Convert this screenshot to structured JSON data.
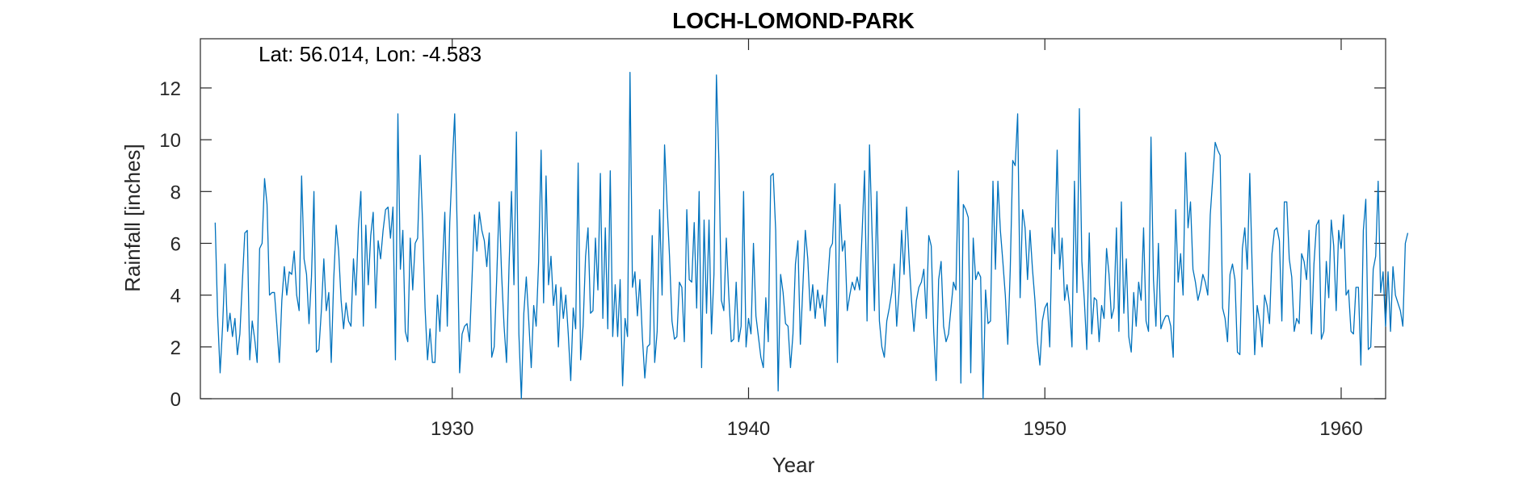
{
  "chart_data": {
    "type": "line",
    "title": "LOCH-LOMOND-PARK",
    "annotation": "Lat: 56.014, Lon: -4.583",
    "xlabel": "Year",
    "ylabel": "Rainfall [inches]",
    "xlim": [
      1921.5,
      1961.5
    ],
    "ylim": [
      0,
      13.9
    ],
    "xticks": [
      1930,
      1940,
      1950,
      1960
    ],
    "yticks": [
      0,
      2,
      4,
      6,
      8,
      10,
      12
    ],
    "grid": false,
    "series": [
      {
        "color": "#0072BD",
        "x_start": 1922.0,
        "x_step": 0.08333,
        "values": [
          6.8,
          3.2,
          1.0,
          2.8,
          5.2,
          2.6,
          3.3,
          2.4,
          3.1,
          1.7,
          2.5,
          4.5,
          6.4,
          6.5,
          1.5,
          3.0,
          2.3,
          1.4,
          5.8,
          6.0,
          8.5,
          7.5,
          4.0,
          4.1,
          4.1,
          2.8,
          1.4,
          3.8,
          5.1,
          4.0,
          4.9,
          4.8,
          5.7,
          4.0,
          3.4,
          8.6,
          5.4,
          4.8,
          2.9,
          4.7,
          8.0,
          1.8,
          1.9,
          3.4,
          5.4,
          3.4,
          4.1,
          1.4,
          4.6,
          6.7,
          5.7,
          3.8,
          2.7,
          3.7,
          3.0,
          2.8,
          5.4,
          4.0,
          6.6,
          8.0,
          2.8,
          6.7,
          4.4,
          6.3,
          7.2,
          3.5,
          6.1,
          5.4,
          6.5,
          7.3,
          7.4,
          6.2,
          7.4,
          1.5,
          11.0,
          5.0,
          6.5,
          2.6,
          2.2,
          6.2,
          4.2,
          6.0,
          6.2,
          9.4,
          6.8,
          3.5,
          1.5,
          2.7,
          1.4,
          1.4,
          4.0,
          2.6,
          5.0,
          7.2,
          2.8,
          6.8,
          9.0,
          11.0,
          6.6,
          1.0,
          2.5,
          2.8,
          2.9,
          2.2,
          4.6,
          7.1,
          5.7,
          7.2,
          6.5,
          6.1,
          5.1,
          6.4,
          1.6,
          2.0,
          4.6,
          7.6,
          4.8,
          2.8,
          1.4,
          5.1,
          8.0,
          4.4,
          10.3,
          2.5,
          0.0,
          3.3,
          4.7,
          3.0,
          1.2,
          3.6,
          2.8,
          5.3,
          9.6,
          3.7,
          8.6,
          4.4,
          5.5,
          3.6,
          4.4,
          2.0,
          4.3,
          3.1,
          4.0,
          2.5,
          0.7,
          3.5,
          2.7,
          9.1,
          1.5,
          2.8,
          5.5,
          6.6,
          3.3,
          3.4,
          6.2,
          4.2,
          8.7,
          3.1,
          6.6,
          2.7,
          8.8,
          2.4,
          4.4,
          2.4,
          4.6,
          0.5,
          3.1,
          2.4,
          12.6,
          4.3,
          4.9,
          3.2,
          4.6,
          2.4,
          0.8,
          2.0,
          2.1,
          6.3,
          1.4,
          2.6,
          7.3,
          4.0,
          9.8,
          7.5,
          5.5,
          3.0,
          2.3,
          2.4,
          4.5,
          4.3,
          2.2,
          7.3,
          4.6,
          4.5,
          6.8,
          3.5,
          8.0,
          1.2,
          6.9,
          3.3,
          6.9,
          2.5,
          4.8,
          12.5,
          9.2,
          3.8,
          3.4,
          6.2,
          4.0,
          2.2,
          2.3,
          4.5,
          2.2,
          2.8,
          8.0,
          2.0,
          3.1,
          2.5,
          6.0,
          3.2,
          2.4,
          1.6,
          1.2,
          3.9,
          2.2,
          8.6,
          8.7,
          6.5,
          0.3,
          4.8,
          4.1,
          2.9,
          2.8,
          1.2,
          2.5,
          5.2,
          6.1,
          2.1,
          4.3,
          6.5,
          5.4,
          3.4,
          4.4,
          3.1,
          4.2,
          3.5,
          4.0,
          2.8,
          4.4,
          5.8,
          6.0,
          8.3,
          1.4,
          7.5,
          5.7,
          6.1,
          3.4,
          4.0,
          4.5,
          4.2,
          4.7,
          4.2,
          6.4,
          8.8,
          3.0,
          9.8,
          6.5,
          3.4,
          8.0,
          3.0,
          2.0,
          1.6,
          3.0,
          3.5,
          4.1,
          5.2,
          2.8,
          4.2,
          6.5,
          4.8,
          7.4,
          5.4,
          3.8,
          2.6,
          3.8,
          4.3,
          4.5,
          5.0,
          3.1,
          6.3,
          5.9,
          2.6,
          0.7,
          4.6,
          5.3,
          2.8,
          2.2,
          2.5,
          3.5,
          4.5,
          4.2,
          8.8,
          0.6,
          7.5,
          7.3,
          7.0,
          1.0,
          6.2,
          4.6,
          4.9,
          4.7,
          0.0,
          4.2,
          2.9,
          3.0,
          8.4,
          5.0,
          8.4,
          6.5,
          5.3,
          4.0,
          2.1,
          5.0,
          9.2,
          9.0,
          11.0,
          3.9,
          7.3,
          6.6,
          4.6,
          6.5,
          5.0,
          3.8,
          2.2,
          1.3,
          3.0,
          3.5,
          3.7,
          2.0,
          6.6,
          5.6,
          9.6,
          5.0,
          6.2,
          3.8,
          4.4,
          3.6,
          2.0,
          8.4,
          4.1,
          11.2,
          5.3,
          3.8,
          1.9,
          6.4,
          2.5,
          3.9,
          3.8,
          2.2,
          3.6,
          3.1,
          5.8,
          4.8,
          3.1,
          3.5,
          6.6,
          2.6,
          7.6,
          3.3,
          5.4,
          2.4,
          1.8,
          4.1,
          2.8,
          4.5,
          3.8,
          6.6,
          3.0,
          2.6,
          10.1,
          4.6,
          2.8,
          6.0,
          2.7,
          3.0,
          3.2,
          3.2,
          2.8,
          1.6,
          7.3,
          4.5,
          5.6,
          4.0,
          9.5,
          6.6,
          7.6,
          5.0,
          4.5,
          3.8,
          4.2,
          4.8,
          4.5,
          4.0,
          7.1,
          8.5,
          9.9,
          9.6,
          9.4,
          3.5,
          3.1,
          2.2,
          4.8,
          5.2,
          4.6,
          1.8,
          1.7,
          5.8,
          6.6,
          5.0,
          8.7,
          5.0,
          1.7,
          3.6,
          3.0,
          2.0,
          4.0,
          3.6,
          2.9,
          5.6,
          6.5,
          6.6,
          6.1,
          3.0,
          7.6,
          7.6,
          5.4,
          4.7,
          2.6,
          3.1,
          2.9,
          5.6,
          5.3,
          4.6,
          6.5,
          2.5,
          5.2,
          6.7,
          6.9,
          2.3,
          2.6,
          5.3,
          3.9,
          6.9,
          5.9,
          3.4,
          6.5,
          5.8,
          7.1,
          4.0,
          4.2,
          2.6,
          2.5,
          4.3,
          4.3,
          1.3,
          6.5,
          7.7,
          1.9,
          2.0,
          5.0,
          5.5,
          8.4,
          4.1,
          4.9,
          2.8,
          4.9,
          2.6,
          5.1,
          4.0,
          3.7,
          3.4,
          2.8,
          6.0,
          6.4
        ]
      }
    ]
  }
}
